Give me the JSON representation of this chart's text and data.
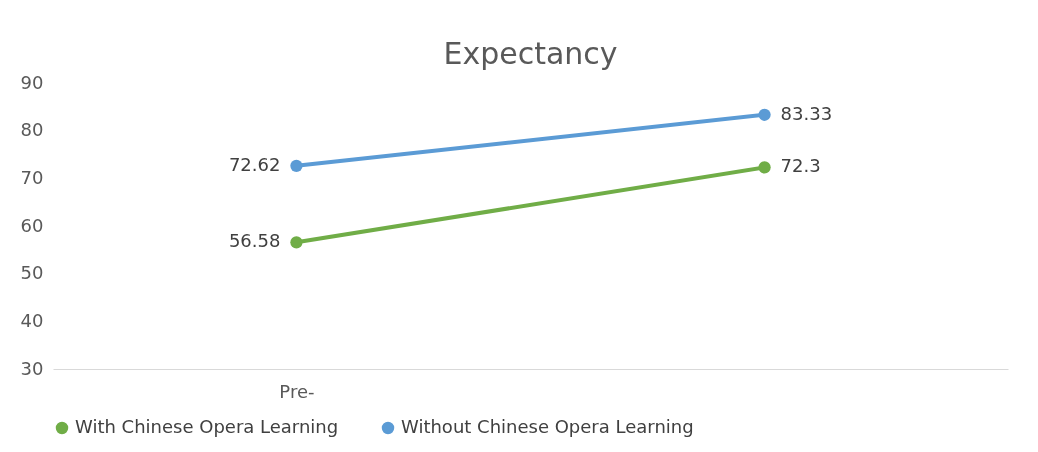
{
  "chart_data": {
    "type": "line",
    "title": "Expectancy",
    "categories": [
      "Pre-",
      null
    ],
    "series": [
      {
        "name": "With Chinese Opera Learning",
        "color": "#70ad47",
        "values": [
          56.58,
          72.3
        ]
      },
      {
        "name": "Without Chinese Opera Learning",
        "color": "#5b9bd5",
        "values": [
          72.62,
          83.33
        ]
      }
    ],
    "ylim": [
      30,
      90
    ],
    "yticks": [
      30,
      40,
      50,
      60,
      70,
      80,
      90
    ],
    "grid": false,
    "legend": "bottom",
    "marker": "circle",
    "line_style": "solid",
    "data_labels": true
  }
}
